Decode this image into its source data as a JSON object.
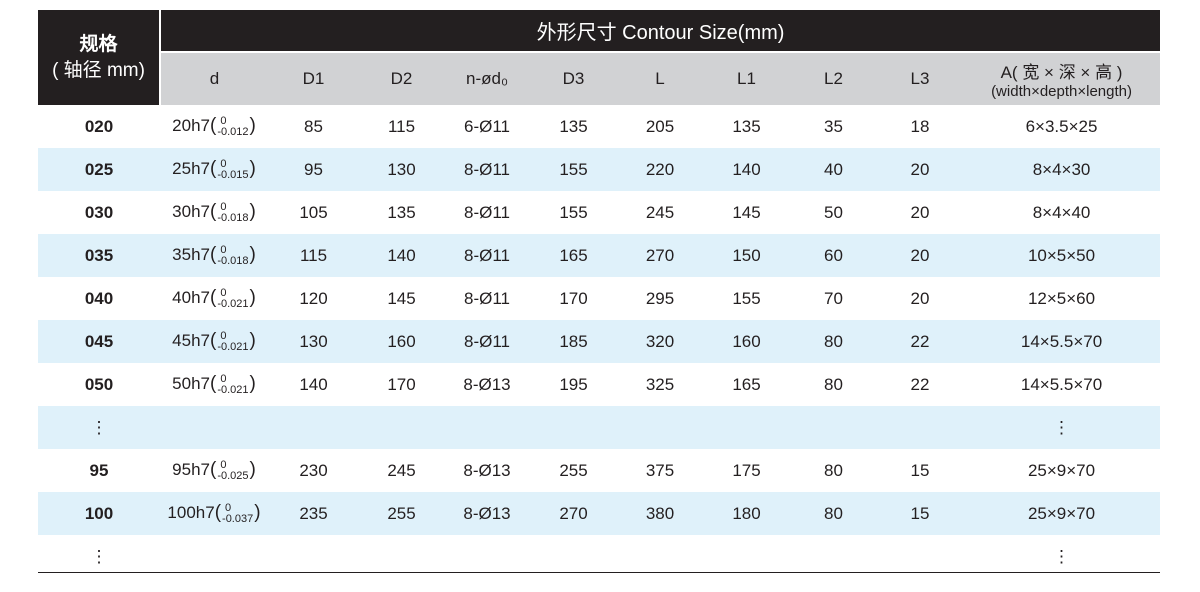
{
  "header": {
    "spec_label": "规格",
    "spec_sub": "( 轴径 mm)",
    "group_title": "外形尺寸 Contour Size(mm)",
    "columns": [
      "d",
      "D1",
      "D2",
      "n-ød₀",
      "D3",
      "L",
      "L1",
      "L2",
      "L3"
    ],
    "a_label": "A( 宽 × 深 × 高 )",
    "a_sub": "(width×depth×length)"
  },
  "rows": [
    {
      "spec": "020",
      "d": "20h7",
      "up": "0",
      "low": "-0.012",
      "D1": "85",
      "D2": "115",
      "n": "6-Ø11",
      "D3": "135",
      "L": "205",
      "L1": "135",
      "L2": "35",
      "L3": "18",
      "A": "6×3.5×25"
    },
    {
      "spec": "025",
      "d": "25h7",
      "up": "0",
      "low": "-0.015",
      "D1": "95",
      "D2": "130",
      "n": "8-Ø11",
      "D3": "155",
      "L": "220",
      "L1": "140",
      "L2": "40",
      "L3": "20",
      "A": "8×4×30"
    },
    {
      "spec": "030",
      "d": "30h7",
      "up": "0",
      "low": "-0.018",
      "D1": "105",
      "D2": "135",
      "n": "8-Ø11",
      "D3": "155",
      "L": "245",
      "L1": "145",
      "L2": "50",
      "L3": "20",
      "A": "8×4×40"
    },
    {
      "spec": "035",
      "d": "35h7",
      "up": "0",
      "low": "-0.018",
      "D1": "115",
      "D2": "140",
      "n": "8-Ø11",
      "D3": "165",
      "L": "270",
      "L1": "150",
      "L2": "60",
      "L3": "20",
      "A": "10×5×50"
    },
    {
      "spec": "040",
      "d": "40h7",
      "up": "0",
      "low": "-0.021",
      "D1": "120",
      "D2": "145",
      "n": "8-Ø11",
      "D3": "170",
      "L": "295",
      "L1": "155",
      "L2": "70",
      "L3": "20",
      "A": "12×5×60"
    },
    {
      "spec": "045",
      "d": "45h7",
      "up": "0",
      "low": "-0.021",
      "D1": "130",
      "D2": "160",
      "n": "8-Ø11",
      "D3": "185",
      "L": "320",
      "L1": "160",
      "L2": "80",
      "L3": "22",
      "A": "14×5.5×70"
    },
    {
      "spec": "050",
      "d": "50h7",
      "up": "0",
      "low": "-0.021",
      "D1": "140",
      "D2": "170",
      "n": "8-Ø13",
      "D3": "195",
      "L": "325",
      "L1": "165",
      "L2": "80",
      "L3": "22",
      "A": "14×5.5×70"
    },
    {
      "ellipsis": true
    },
    {
      "spec": "95",
      "d": "95h7",
      "up": "0",
      "low": "-0.025",
      "D1": "230",
      "D2": "245",
      "n": "8-Ø13",
      "D3": "255",
      "L": "375",
      "L1": "175",
      "L2": "80",
      "L3": "15",
      "A": "25×9×70"
    },
    {
      "spec": "100",
      "d": "100h7",
      "up": "0",
      "low": "-0.037",
      "D1": "235",
      "D2": "255",
      "n": "8-Ø13",
      "D3": "270",
      "L": "380",
      "L1": "180",
      "L2": "80",
      "L3": "15",
      "A": "25×9×70"
    },
    {
      "ellipsis": true
    }
  ],
  "ellipsis": "⋮"
}
